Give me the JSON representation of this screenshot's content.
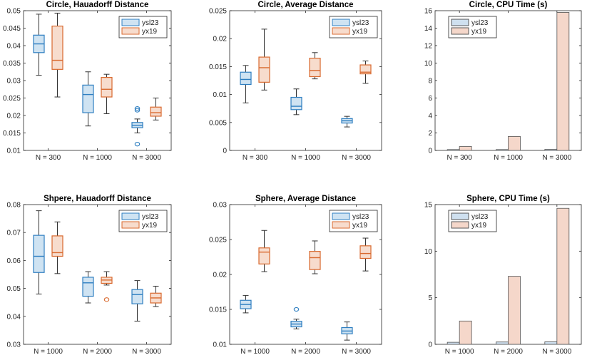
{
  "colors": {
    "ysl23_edge": "#2f7fc1",
    "ysl23_fill": "#cfe3f2",
    "yx19_edge": "#d9692e",
    "yx19_fill": "#f7dccd",
    "whisker": "#333333",
    "bar_edge": "#555555",
    "ysl23_bar": "#cfe0ef",
    "yx19_bar": "#f5d7ca"
  },
  "chart_data": [
    {
      "type": "box",
      "title": "Circle, Hauadorff Distance",
      "categories": [
        "N = 300",
        "N = 1000",
        "N = 3000"
      ],
      "ylim": [
        0.01,
        0.05
      ],
      "yticks": [
        0.01,
        0.015,
        0.02,
        0.025,
        0.03,
        0.035,
        0.04,
        0.045,
        0.05
      ],
      "ytick_labels": [
        "0.01",
        "0.015",
        "0.02",
        "0.025",
        "0.03",
        "0.035",
        "0.04",
        "0.045",
        "0.05"
      ],
      "legend": [
        "ysl23",
        "yx19"
      ],
      "legend_position": "top-right",
      "series": [
        {
          "name": "ysl23",
          "boxes": [
            {
              "min": 0.0315,
              "q1": 0.038,
              "median": 0.0405,
              "q3": 0.043,
              "max": 0.049,
              "outliers": []
            },
            {
              "min": 0.017,
              "q1": 0.0208,
              "median": 0.026,
              "q3": 0.0287,
              "max": 0.0325,
              "outliers": []
            },
            {
              "min": 0.015,
              "q1": 0.0165,
              "median": 0.0172,
              "q3": 0.018,
              "max": 0.019,
              "outliers": [
                0.022,
                0.0215,
                0.0118
              ]
            }
          ]
        },
        {
          "name": "yx19",
          "boxes": [
            {
              "min": 0.0253,
              "q1": 0.0332,
              "median": 0.0358,
              "q3": 0.0456,
              "max": 0.0493,
              "outliers": []
            },
            {
              "min": 0.0205,
              "q1": 0.0253,
              "median": 0.0275,
              "q3": 0.0309,
              "max": 0.0318,
              "outliers": []
            },
            {
              "min": 0.0187,
              "q1": 0.0198,
              "median": 0.0208,
              "q3": 0.0224,
              "max": 0.025,
              "outliers": []
            }
          ]
        }
      ]
    },
    {
      "type": "box",
      "title": "Circle, Average Distance",
      "categories": [
        "N = 300",
        "N = 1000",
        "N = 3000"
      ],
      "ylim": [
        0,
        0.025
      ],
      "yticks": [
        0,
        0.005,
        0.01,
        0.015,
        0.02,
        0.025
      ],
      "ytick_labels": [
        "0",
        "0.005",
        "0.01",
        "0.015",
        "0.02",
        "0.025"
      ],
      "legend": [
        "ysl23",
        "yx19"
      ],
      "legend_position": "top-right",
      "series": [
        {
          "name": "ysl23",
          "boxes": [
            {
              "min": 0.0085,
              "q1": 0.0118,
              "median": 0.0127,
              "q3": 0.014,
              "max": 0.0152,
              "outliers": []
            },
            {
              "min": 0.0064,
              "q1": 0.0073,
              "median": 0.0079,
              "q3": 0.0095,
              "max": 0.011,
              "outliers": []
            },
            {
              "min": 0.0042,
              "q1": 0.0049,
              "median": 0.0053,
              "q3": 0.0057,
              "max": 0.0061,
              "outliers": []
            }
          ]
        },
        {
          "name": "yx19",
          "boxes": [
            {
              "min": 0.0108,
              "q1": 0.0122,
              "median": 0.0148,
              "q3": 0.0167,
              "max": 0.0217,
              "outliers": []
            },
            {
              "min": 0.0128,
              "q1": 0.0132,
              "median": 0.0143,
              "q3": 0.0165,
              "max": 0.0175,
              "outliers": []
            },
            {
              "min": 0.012,
              "q1": 0.0137,
              "median": 0.014,
              "q3": 0.0153,
              "max": 0.016,
              "outliers": []
            }
          ]
        }
      ]
    },
    {
      "type": "bar",
      "title": "Circle, CPU Time (s)",
      "categories": [
        "N = 300",
        "N = 1000",
        "N = 3000"
      ],
      "ylim": [
        0,
        16
      ],
      "yticks": [
        0,
        2,
        4,
        6,
        8,
        10,
        12,
        14,
        16
      ],
      "ytick_labels": [
        "0",
        "2",
        "4",
        "6",
        "8",
        "10",
        "12",
        "14",
        "16"
      ],
      "legend": [
        "ysl23",
        "yx19"
      ],
      "legend_position": "top-left",
      "series": [
        {
          "name": "ysl23",
          "values": [
            0.1,
            0.1,
            0.12
          ]
        },
        {
          "name": "yx19",
          "values": [
            0.45,
            1.6,
            15.8
          ]
        }
      ]
    },
    {
      "type": "box",
      "title": "Shpere, Hauadorff Distance",
      "categories": [
        "N = 1000",
        "N = 2000",
        "N = 3000"
      ],
      "ylim": [
        0.03,
        0.08
      ],
      "yticks": [
        0.03,
        0.04,
        0.05,
        0.06,
        0.07,
        0.08
      ],
      "ytick_labels": [
        "0.03",
        "0.04",
        "0.05",
        "0.06",
        "0.07",
        "0.08"
      ],
      "legend": [
        "ysl23",
        "yx19"
      ],
      "legend_position": "top-right",
      "series": [
        {
          "name": "ysl23",
          "boxes": [
            {
              "min": 0.048,
              "q1": 0.0557,
              "median": 0.0615,
              "q3": 0.069,
              "max": 0.0778,
              "outliers": []
            },
            {
              "min": 0.0448,
              "q1": 0.0472,
              "median": 0.052,
              "q3": 0.054,
              "max": 0.056,
              "outliers": []
            },
            {
              "min": 0.0383,
              "q1": 0.0445,
              "median": 0.0478,
              "q3": 0.0496,
              "max": 0.0528,
              "outliers": []
            }
          ]
        },
        {
          "name": "yx19",
          "boxes": [
            {
              "min": 0.0553,
              "q1": 0.0615,
              "median": 0.0628,
              "q3": 0.0688,
              "max": 0.0738,
              "outliers": []
            },
            {
              "min": 0.0512,
              "q1": 0.0518,
              "median": 0.053,
              "q3": 0.054,
              "max": 0.056,
              "outliers": [
                0.046
              ]
            },
            {
              "min": 0.0435,
              "q1": 0.0448,
              "median": 0.0466,
              "q3": 0.0483,
              "max": 0.0508,
              "outliers": []
            }
          ]
        }
      ]
    },
    {
      "type": "box",
      "title": "Sphere, Average Distance",
      "categories": [
        "N = 1000",
        "N = 2000",
        "N = 3000"
      ],
      "ylim": [
        0.01,
        0.03
      ],
      "yticks": [
        0.01,
        0.015,
        0.02,
        0.025,
        0.03
      ],
      "ytick_labels": [
        "0.01",
        "0.015",
        "0.02",
        "0.025",
        "0.03"
      ],
      "legend": [
        "ysl23",
        "yx19"
      ],
      "legend_position": "top-right",
      "series": [
        {
          "name": "ysl23",
          "boxes": [
            {
              "min": 0.0145,
              "q1": 0.0151,
              "median": 0.0157,
              "q3": 0.0163,
              "max": 0.017,
              "outliers": []
            },
            {
              "min": 0.0122,
              "q1": 0.0125,
              "median": 0.0129,
              "q3": 0.0133,
              "max": 0.0136,
              "outliers": [
                0.015
              ]
            },
            {
              "min": 0.0106,
              "q1": 0.0115,
              "median": 0.0119,
              "q3": 0.0124,
              "max": 0.0132,
              "outliers": []
            }
          ]
        },
        {
          "name": "yx19",
          "boxes": [
            {
              "min": 0.0204,
              "q1": 0.0215,
              "median": 0.0232,
              "q3": 0.0238,
              "max": 0.0263,
              "outliers": []
            },
            {
              "min": 0.0201,
              "q1": 0.0207,
              "median": 0.0224,
              "q3": 0.0233,
              "max": 0.0248,
              "outliers": []
            },
            {
              "min": 0.0205,
              "q1": 0.0223,
              "median": 0.023,
              "q3": 0.0241,
              "max": 0.0252,
              "outliers": []
            }
          ]
        }
      ]
    },
    {
      "type": "bar",
      "title": "Sphere, CPU Time (s)",
      "categories": [
        "N = 1000",
        "N = 2000",
        "N = 3000"
      ],
      "ylim": [
        0,
        15
      ],
      "yticks": [
        0,
        5,
        10,
        15
      ],
      "ytick_labels": [
        "0",
        "5",
        "10",
        "15"
      ],
      "legend": [
        "ysl23",
        "yx19"
      ],
      "legend_position": "top-left",
      "series": [
        {
          "name": "ysl23",
          "values": [
            0.22,
            0.25,
            0.27
          ]
        },
        {
          "name": "yx19",
          "values": [
            2.5,
            7.3,
            14.6
          ]
        }
      ]
    }
  ]
}
